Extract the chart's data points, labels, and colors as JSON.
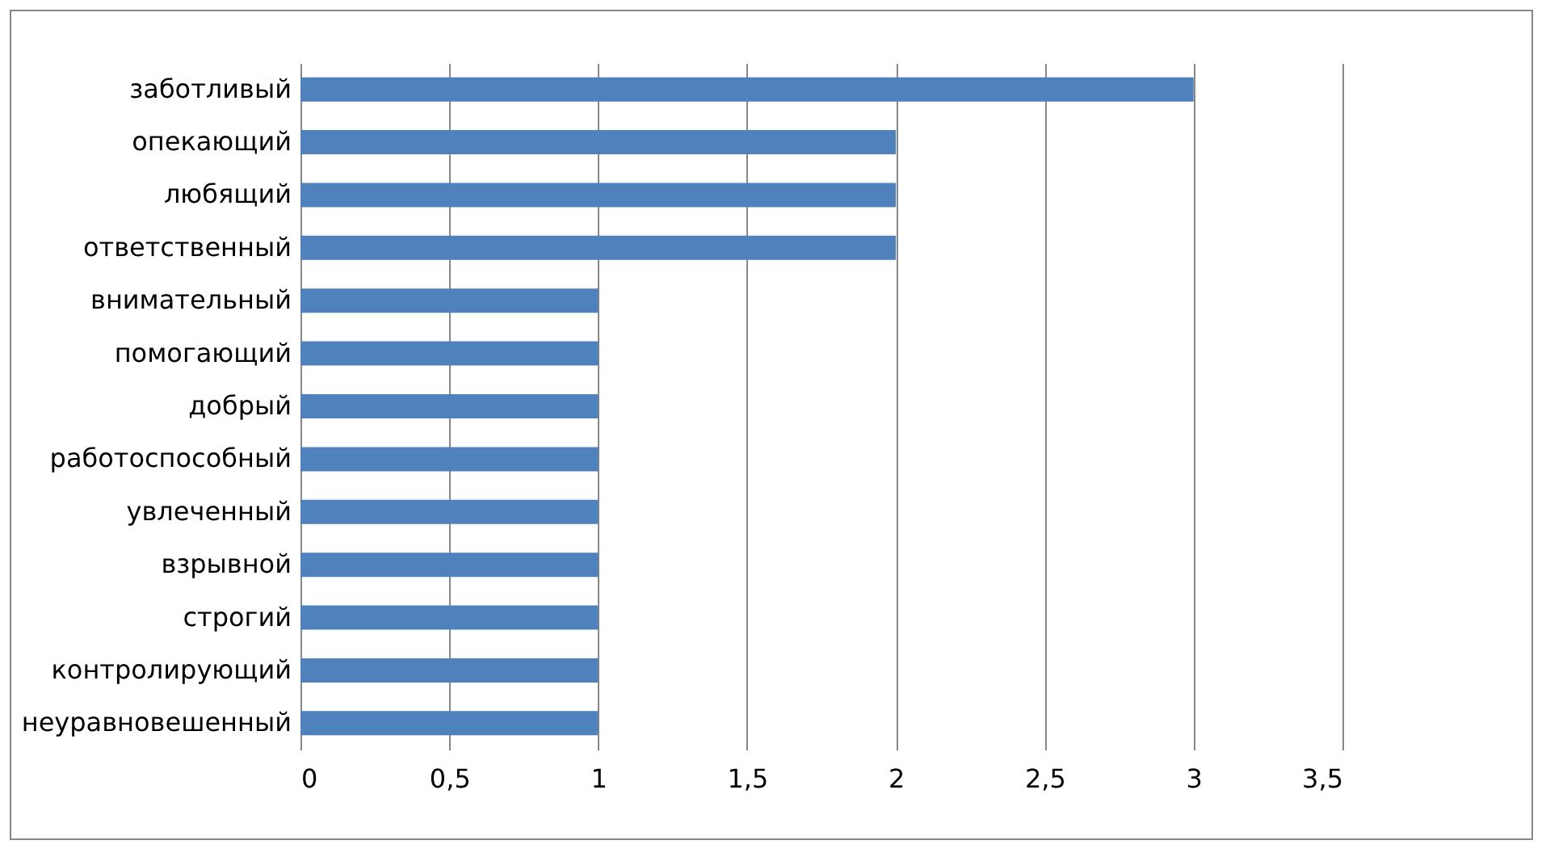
{
  "chart_data": {
    "type": "bar",
    "orientation": "horizontal",
    "categories": [
      "заботливый",
      "опекающий",
      "любящий",
      "ответственный",
      "внимательный",
      "помогающий",
      "добрый",
      "работоспособный",
      "увлеченный",
      "взрывной",
      "строгий",
      "контролирующий",
      "неуравновешенный"
    ],
    "values": [
      3,
      2,
      2,
      2,
      1,
      1,
      1,
      1,
      1,
      1,
      1,
      1,
      1
    ],
    "color": "#4f81bd",
    "xlim": [
      0,
      3.5
    ],
    "xticks": [
      0,
      {
        "value": 0.5,
        "label": "0,5"
      },
      1,
      {
        "value": 1.5,
        "label": "1,5"
      },
      2,
      {
        "value": 2.5,
        "label": "2,5"
      },
      3,
      {
        "value": 3.5,
        "label": "3,5"
      }
    ],
    "grid": "x"
  }
}
